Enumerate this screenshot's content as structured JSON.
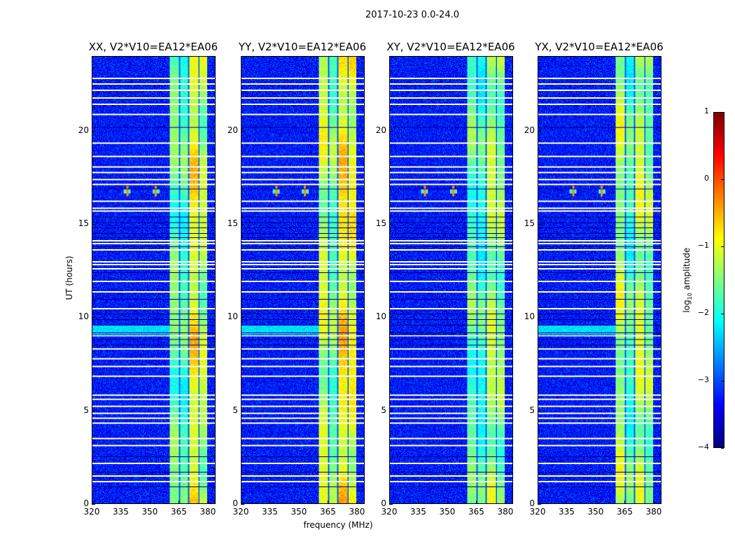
{
  "suptitle": "2017-10-23 0.0-24.0",
  "chart_data": {
    "type": "heatmap",
    "title": "2017-10-23 0.0-24.0",
    "xlabel": "frequency (MHz)",
    "ylabel": "UT (hours)",
    "xlim": [
      320,
      384
    ],
    "ylim": [
      0,
      24
    ],
    "xticks": [
      "320",
      "335",
      "350",
      "365",
      "380"
    ],
    "xtick_values": [
      320,
      335,
      350,
      365,
      380
    ],
    "yticks": [
      "0",
      "5",
      "10",
      "15",
      "20"
    ],
    "ytick_values": [
      0,
      5,
      10,
      15,
      20
    ],
    "panels": [
      {
        "title": "XX, V2*V10=EA12*EA06",
        "band_levels": [
          -1.6,
          -1.8,
          -0.9,
          -1.3
        ]
      },
      {
        "title": "YY, V2*V10=EA12*EA06",
        "band_levels": [
          -1.2,
          -1.6,
          -0.8,
          -1.0
        ]
      },
      {
        "title": "XY, V2*V10=EA12*EA06",
        "band_levels": [
          -1.7,
          -1.9,
          -1.3,
          -1.5
        ]
      },
      {
        "title": "YX, V2*V10=EA12*EA06",
        "band_levels": [
          -1.3,
          -1.8,
          -1.2,
          -1.5
        ]
      }
    ],
    "band_edges_mhz": [
      360.4,
      365.5,
      370.2,
      375.6,
      380.0
    ],
    "background_level": -3.3,
    "rfi_spikes": [
      {
        "freq": 338,
        "hour": 16.8
      },
      {
        "freq": 353,
        "hour": 16.8
      }
    ],
    "flagged_hours": [
      22.88,
      22.58,
      22.24,
      21.83,
      21.49,
      20.93,
      19.39,
      18.68,
      18.11,
      17.81,
      17.44,
      17.18,
      16.28,
      15.9,
      15.75,
      14.14,
      13.99,
      13.65,
      13.01,
      12.86,
      12.64,
      11.96,
      11.4,
      10.5,
      9.04,
      8.33,
      7.8,
      7.39,
      6.86,
      5.85,
      5.63,
      5.25,
      4.88,
      4.61,
      4.35,
      3.53,
      3.15,
      2.18,
      1.5,
      1.2
    ],
    "dark_hours": [
      20.2,
      16.9,
      15.4,
      15.1,
      14.8,
      14.5,
      14.3,
      13.8,
      12.4,
      11.0,
      10.2,
      9.9,
      9.6,
      9.2,
      8.8,
      8.5,
      2.5,
      1.7,
      0.9
    ],
    "colorbar": {
      "label": "log10 amplitude",
      "label_main": "log",
      "label_sub": "10",
      "label_rest": " amplitude",
      "range": [
        -4,
        1
      ],
      "ticks": [
        "1",
        "0",
        "−1",
        "−2",
        "−3",
        "−4"
      ],
      "tick_values": [
        1,
        0,
        -1,
        -2,
        -3,
        -4
      ],
      "colormap": "jet"
    }
  }
}
